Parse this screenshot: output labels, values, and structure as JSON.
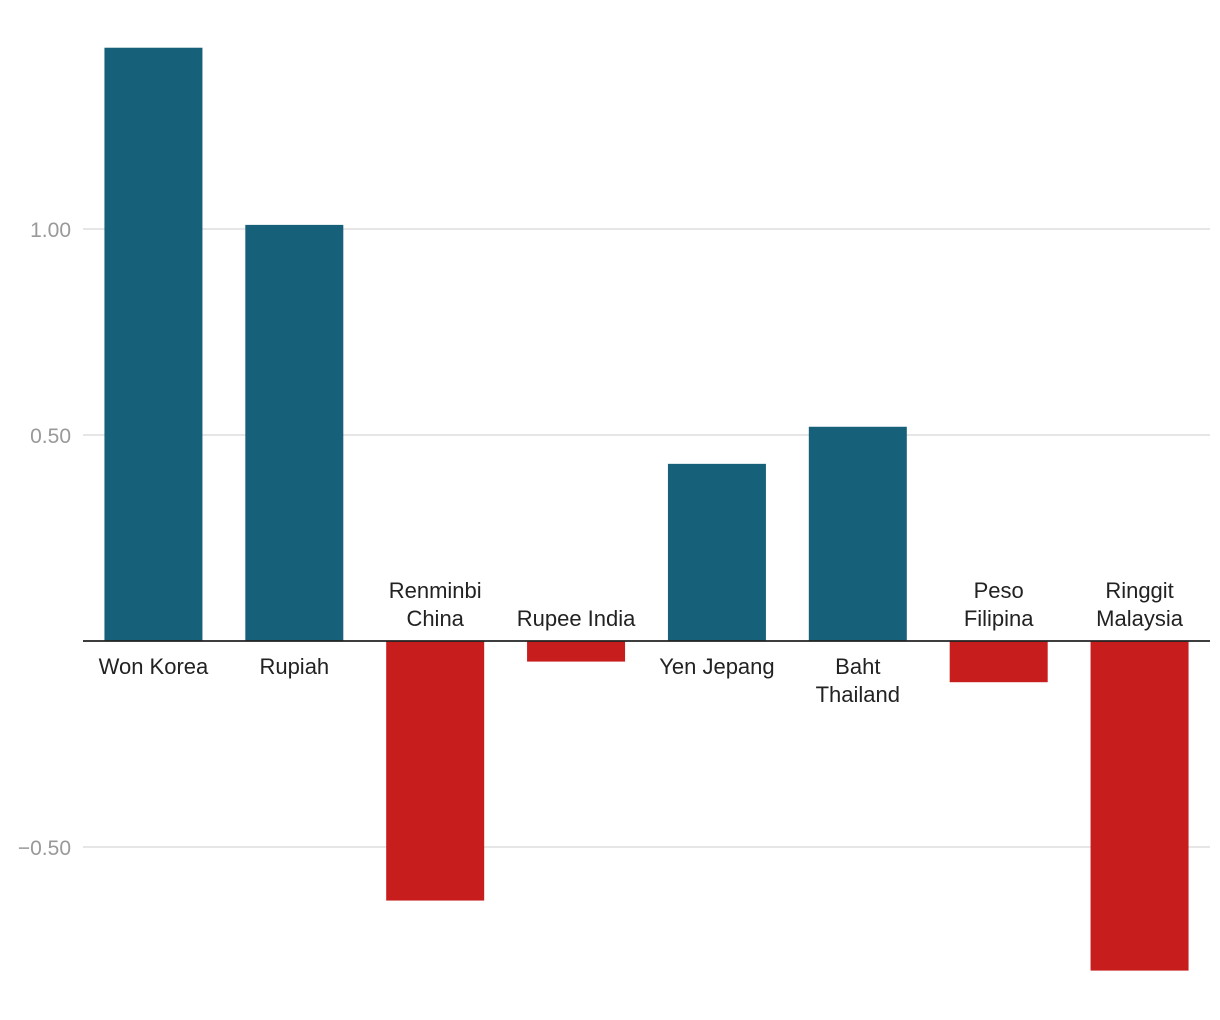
{
  "chart_data": {
    "type": "bar",
    "title": "",
    "xlabel": "",
    "ylabel": "",
    "categories": [
      [
        "Won Korea"
      ],
      [
        "Rupiah"
      ],
      [
        "Renminbi",
        "China"
      ],
      [
        "Rupee India"
      ],
      [
        "Yen Jepang"
      ],
      [
        "Baht",
        "Thailand"
      ],
      [
        "Peso",
        "Filipina"
      ],
      [
        "Ringgit",
        "Malaysia"
      ]
    ],
    "values": [
      1.44,
      1.01,
      -0.63,
      -0.05,
      0.43,
      0.52,
      -0.1,
      -0.8
    ],
    "ylim": [
      -0.88,
      1.55
    ],
    "yticks": [
      1.0,
      0.5,
      -0.5
    ],
    "ytick_labels": [
      "1.00",
      "0.50",
      "−0.50"
    ],
    "grid": true,
    "colors": {
      "positive": "#17607a",
      "negative": "#c81d1d"
    }
  }
}
